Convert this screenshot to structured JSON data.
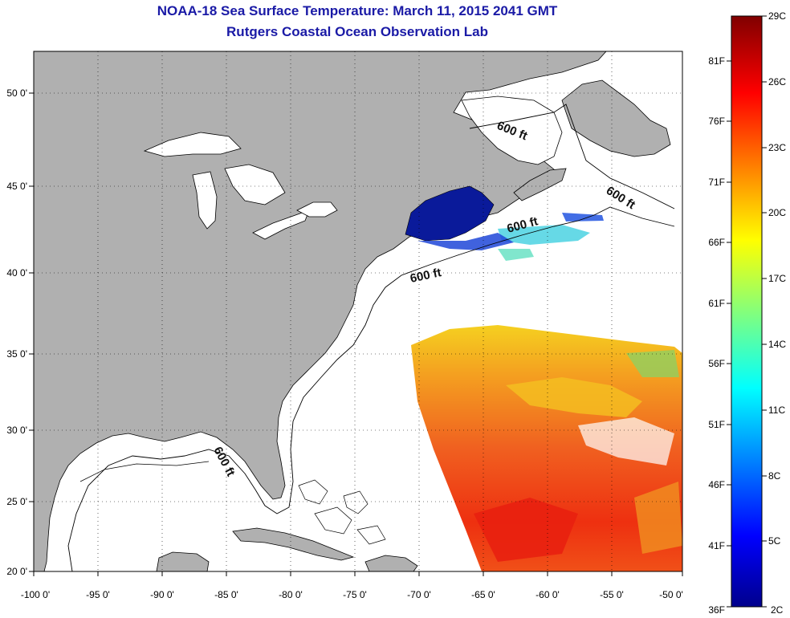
{
  "title": {
    "line1": "NOAA-18 Sea Surface Temperature:  March 11, 2015 2041 GMT",
    "line2": "Rutgers Coastal Ocean Observation Lab"
  },
  "map": {
    "lon_labels": [
      "-100 0'",
      "-95 0'",
      "-90 0'",
      "-85 0'",
      "-80 0'",
      "-75 0'",
      "-70 0'",
      "-65 0'",
      "-60 0'",
      "-55 0'",
      "-50 0'"
    ],
    "lat_labels": [
      "20 0'",
      "25 0'",
      "30 0'",
      "35 0'",
      "40 0'",
      "45 0'",
      "50 0'"
    ],
    "contour_label": "600 ft",
    "land_color": "#b0b0b0",
    "ocean_color": "#ffffff"
  },
  "colorbar": {
    "celsius_labels": [
      "29C",
      "26C",
      "23C",
      "20C",
      "17C",
      "14C",
      "11C",
      "8C",
      "5C",
      "2C"
    ],
    "fahrenheit_labels": [
      "81F",
      "76F",
      "71F",
      "66F",
      "61F",
      "56F",
      "51F",
      "46F",
      "41F",
      "36F"
    ]
  }
}
